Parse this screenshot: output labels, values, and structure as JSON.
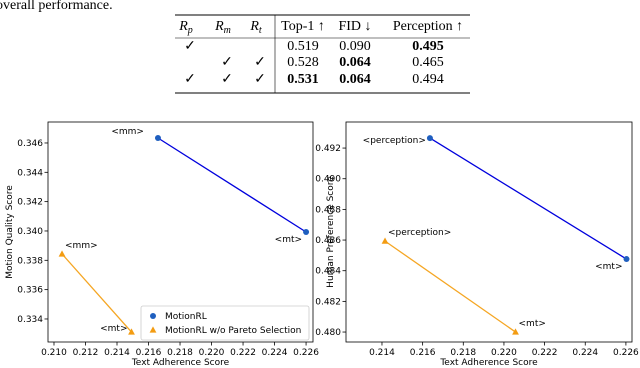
{
  "text": "overall performance.",
  "table": {
    "header": [
      {
        "base": "R",
        "sub": "p"
      },
      {
        "base": "R",
        "sub": "m"
      },
      {
        "base": "R",
        "sub": "t"
      },
      "Top-1 ↑",
      "FID ↓",
      "Perception ↑"
    ],
    "rows": [
      [
        "✓",
        null,
        null,
        "0.519",
        "0.090",
        {
          "text": "0.495",
          "bold": true
        }
      ],
      [
        null,
        "✓",
        "✓",
        "0.528",
        {
          "text": "0.064",
          "bold": true
        },
        "0.465"
      ],
      [
        "✓",
        "✓",
        "✓",
        {
          "text": "0.531",
          "bold": true
        },
        {
          "text": "0.064",
          "bold": true
        },
        "0.494"
      ]
    ]
  },
  "chart_data": [
    {
      "type": "line",
      "x_label": "Text Adherence Score",
      "y_label": "Motion Quality Score",
      "xlim": [
        0.20962,
        0.22644
      ],
      "ylim": [
        0.33243,
        0.34743
      ],
      "xticks": [
        {
          "value": 0.21,
          "label": "0.210"
        },
        0.212,
        0.214,
        0.216,
        0.218,
        {
          "value": 0.22,
          "label": "0.220"
        },
        0.222,
        0.224,
        0.226
      ],
      "yticks": [
        0.334,
        0.336,
        0.338,
        {
          "value": 0.34,
          "label": "0.340"
        },
        0.342,
        0.344,
        0.346
      ],
      "legend": "lower right",
      "series": [
        {
          "name": "MotionRL",
          "color": "#1f5fbf",
          "line_color": "#0000dd",
          "marker": "o",
          "x": [
            0.2166,
            0.226
          ],
          "values": [
            0.34634,
            0.33993
          ],
          "point_labels": [
            "<mm>",
            "<mt>"
          ]
        },
        {
          "name": "MotionRL w/o Pareto Selection",
          "color": "#f39c12",
          "line_color": "#f5a623",
          "marker": "^",
          "x": [
            0.21051,
            0.21492
          ],
          "values": [
            0.33843,
            0.33311
          ],
          "point_labels": [
            "<mm>",
            "<mt>"
          ]
        }
      ]
    },
    {
      "type": "line",
      "x_label": "Text Adherence Score",
      "y_label": "Human Preference Score",
      "xlim": [
        0.21223,
        0.2263
      ],
      "ylim": [
        0.47935,
        0.4937
      ],
      "xticks": [
        0.214,
        0.216,
        0.218,
        {
          "value": 0.22,
          "label": "0.220"
        },
        0.222,
        0.224,
        0.226
      ],
      "yticks": [
        {
          "value": 0.48,
          "label": "0.480"
        },
        0.482,
        0.484,
        0.486,
        0.488,
        {
          "value": 0.49,
          "label": "0.490"
        },
        0.492
      ],
      "legend": null,
      "series": [
        {
          "name": "MotionRL",
          "color": "#1f5fbf",
          "line_color": "#0000dd",
          "marker": "o",
          "x": [
            0.21636,
            0.22603
          ],
          "values": [
            0.49265,
            0.48476
          ],
          "point_labels": [
            "<perception>",
            "<mt>"
          ]
        },
        {
          "name": "MotionRL w/o Pareto Selection",
          "color": "#f39c12",
          "line_color": "#f5a623",
          "marker": "^",
          "x": [
            0.21415,
            0.22057
          ],
          "values": [
            0.48593,
            0.48
          ],
          "point_labels": [
            "<perception>",
            "<mt>"
          ]
        }
      ]
    }
  ]
}
